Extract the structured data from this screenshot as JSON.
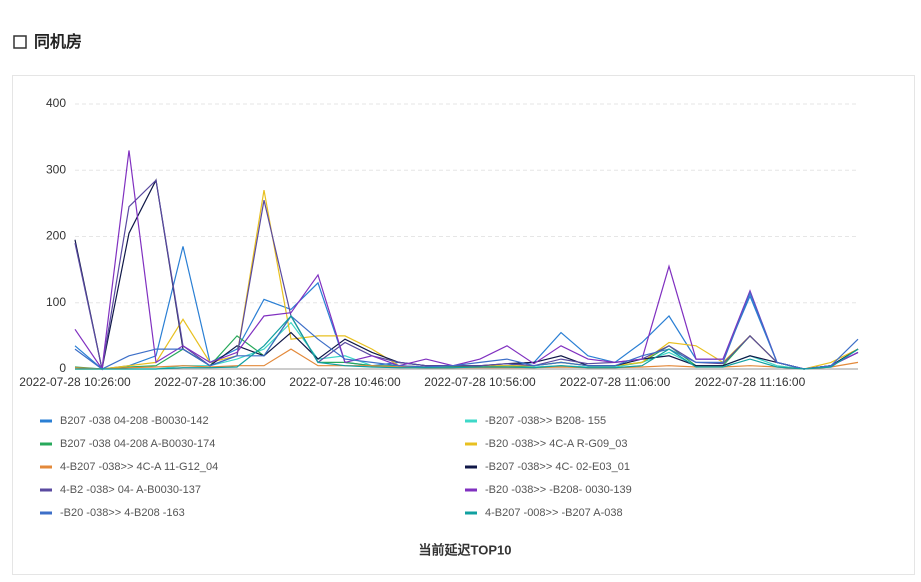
{
  "header": {
    "title": "同机房"
  },
  "chart_data": {
    "type": "line",
    "title": "当前延迟TOP10",
    "categories": [
      "2022-07-28 10:26:00",
      null,
      null,
      null,
      null,
      "2022-07-28 10:36:00",
      null,
      null,
      null,
      null,
      "2022-07-28 10:46:00",
      null,
      null,
      null,
      null,
      "2022-07-28 10:56:00",
      null,
      null,
      null,
      null,
      "2022-07-28 11:06:00",
      null,
      null,
      null,
      null,
      "2022-07-28 11:16:00",
      null,
      null,
      null,
      null
    ],
    "ylim": [
      0,
      400
    ],
    "yticks": [
      0,
      100,
      200,
      300,
      400
    ],
    "grid": true,
    "series": [
      {
        "name": "B207 -038 04-208 -B0030-142",
        "color": "#2a7fd4",
        "values": [
          35,
          0,
          5,
          20,
          185,
          10,
          30,
          105,
          90,
          130,
          10,
          5,
          10,
          5,
          5,
          5,
          5,
          10,
          55,
          20,
          10,
          40,
          80,
          15,
          15,
          110,
          10,
          0,
          5,
          30
        ]
      },
      {
        "name": "-B207 -038>> B208- 155",
        "color": "#3ed8c8",
        "values": [
          0,
          0,
          0,
          0,
          5,
          5,
          15,
          30,
          70,
          15,
          20,
          5,
          3,
          2,
          2,
          5,
          5,
          3,
          5,
          3,
          3,
          10,
          25,
          5,
          5,
          20,
          5,
          0,
          5,
          25
        ]
      },
      {
        "name": "B207 -038 04-208 A-B0030-174",
        "color": "#27a95b",
        "values": [
          3,
          0,
          3,
          5,
          30,
          5,
          50,
          20,
          80,
          10,
          10,
          5,
          5,
          3,
          3,
          5,
          3,
          5,
          10,
          5,
          5,
          10,
          35,
          5,
          5,
          50,
          10,
          0,
          5,
          30
        ]
      },
      {
        "name": "-B20 -038>> 4C-A R-G09_03",
        "color": "#e8c020",
        "values": [
          0,
          0,
          5,
          10,
          75,
          10,
          20,
          270,
          45,
          50,
          50,
          30,
          5,
          3,
          5,
          5,
          5,
          5,
          10,
          5,
          5,
          10,
          40,
          35,
          10,
          50,
          10,
          0,
          10,
          30
        ]
      },
      {
        "name": "4-B207 -038>> 4C-A 11-G12_04",
        "color": "#e3893a",
        "values": [
          2,
          0,
          2,
          3,
          5,
          3,
          5,
          5,
          30,
          5,
          5,
          5,
          3,
          2,
          2,
          2,
          2,
          2,
          3,
          2,
          2,
          3,
          5,
          3,
          3,
          5,
          3,
          0,
          3,
          10
        ]
      },
      {
        "name": "-B207 -038>> 4C- 02-E03_01",
        "color": "#101848",
        "values": [
          195,
          0,
          205,
          285,
          30,
          5,
          35,
          20,
          55,
          15,
          45,
          25,
          10,
          5,
          5,
          5,
          8,
          10,
          20,
          5,
          5,
          15,
          20,
          5,
          5,
          20,
          10,
          0,
          5,
          30
        ]
      },
      {
        "name": "4-B2 -038> 04- A-B0030-137",
        "color": "#5a4aa0",
        "values": [
          190,
          0,
          245,
          285,
          35,
          5,
          20,
          255,
          80,
          10,
          40,
          20,
          10,
          5,
          5,
          5,
          8,
          5,
          15,
          8,
          10,
          15,
          35,
          10,
          8,
          50,
          10,
          0,
          5,
          25
        ]
      },
      {
        "name": "-B20 -038>> -B208- 0030-139",
        "color": "#8030c0",
        "values": [
          60,
          0,
          330,
          10,
          35,
          10,
          25,
          80,
          85,
          142,
          10,
          20,
          5,
          15,
          5,
          15,
          35,
          8,
          35,
          15,
          10,
          15,
          155,
          15,
          15,
          118,
          10,
          0,
          5,
          25
        ]
      },
      {
        "name": "-B20 -038>> 4-B208 -163",
        "color": "#3d6fc8",
        "values": [
          30,
          0,
          20,
          30,
          30,
          5,
          20,
          20,
          80,
          45,
          15,
          10,
          5,
          3,
          5,
          10,
          15,
          5,
          10,
          5,
          5,
          20,
          30,
          10,
          10,
          115,
          10,
          0,
          5,
          45
        ]
      },
      {
        "name": "4-B207 -008>> -B207 A-038",
        "color": "#10a0a0",
        "values": [
          0,
          0,
          0,
          0,
          2,
          2,
          3,
          35,
          80,
          10,
          5,
          3,
          2,
          2,
          2,
          3,
          3,
          2,
          5,
          2,
          2,
          5,
          30,
          3,
          3,
          15,
          3,
          0,
          3,
          30
        ]
      }
    ]
  }
}
